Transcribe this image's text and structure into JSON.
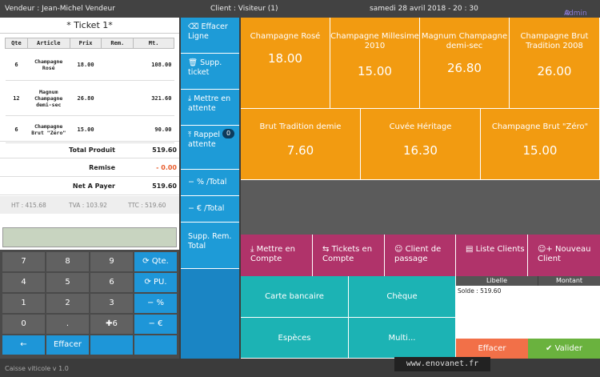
{
  "topbar": {
    "seller": "Vendeur : Jean-Michel Vendeur",
    "client": "Client : Visiteur (1)",
    "datetime": "samedi 28 avril 2018 - 20 : 30",
    "admin": "Admin"
  },
  "ticket": {
    "title": "* Ticket 1*",
    "headers": [
      "Qte",
      "Article",
      "Prix",
      "Rem.",
      "Mt."
    ],
    "rows": [
      {
        "qty": "6",
        "article": "Champagne Rosé",
        "price": "18.00",
        "rem": "",
        "amount": "108.00"
      },
      {
        "qty": "12",
        "article": "Magnum Champagne demi-sec",
        "price": "26.80",
        "rem": "",
        "amount": "321.60"
      },
      {
        "qty": "6",
        "article": "Champagne Brut \"Zéro\"",
        "price": "15.00",
        "rem": "",
        "amount": "90.00"
      }
    ],
    "total_label": "Total Produit",
    "total_value": "519.60",
    "remise_label": "Remise",
    "remise_value": "- 0.00",
    "net_label": "Net A Payer",
    "net_value": "519.60",
    "ht": "HT : 415.68",
    "tva": "TVA : 103.92",
    "ttc": "TTC : 519.60"
  },
  "keypad": {
    "k7": "7",
    "k8": "8",
    "k9": "9",
    "qte": "Qte.",
    "k4": "4",
    "k5": "5",
    "k6": "6",
    "pu": "PU.",
    "k1": "1",
    "k2": "2",
    "k3": "3",
    "pct": "%",
    "k0": "0",
    "dot": ".",
    "plus6": "6",
    "eur": "€",
    "back": "←",
    "clear": "Effacer"
  },
  "actions": {
    "effacer": "Effacer Ligne",
    "supp": "Supp. ticket",
    "attente": "Mettre en attente",
    "rappel": "Rappel en attente",
    "rappel_count": "0",
    "pct_total": "% /Total",
    "eur_total": "€ /Total",
    "supp_rem": "Supp. Rem. Total"
  },
  "products": [
    {
      "name": "Champagne Rosé",
      "price": "18.00"
    },
    {
      "name": "Champagne Millesime 2010",
      "price": "15.00"
    },
    {
      "name": "Magnum Champagne demi-sec",
      "price": "26.80"
    },
    {
      "name": "Champagne Brut Tradition 2008",
      "price": "26.00"
    },
    {
      "name": "Brut Tradition demie",
      "price": "7.60"
    },
    {
      "name": "Cuvée Héritage",
      "price": "16.30"
    },
    {
      "name": "Champagne Brut \"Zéro\"",
      "price": "15.00"
    }
  ],
  "pink": {
    "compte": "Mettre en Compte",
    "tickets": "Tickets en Compte",
    "passage": "Client de passage",
    "liste": "Liste Clients",
    "nouveau": "Nouveau Client"
  },
  "payment": {
    "carte": "Carte bancaire",
    "cheque": "Chèque",
    "especes": "Espèces",
    "multi": "Multi..."
  },
  "ledger": {
    "libelle": "Libelle",
    "montant": "Montant",
    "solde": "Solde : 519.60"
  },
  "final": {
    "effacer": "Effacer",
    "valider": "Valider"
  },
  "footer": {
    "version": "Caisse viticole v 1.0",
    "site": "www.enovanet.fr"
  },
  "colors": {
    "orange": "#f29b11",
    "blue": "#1e9bd7",
    "pink": "#b0336a",
    "teal": "#1cb3b4",
    "green": "#6ab23e",
    "coral": "#f27048"
  }
}
